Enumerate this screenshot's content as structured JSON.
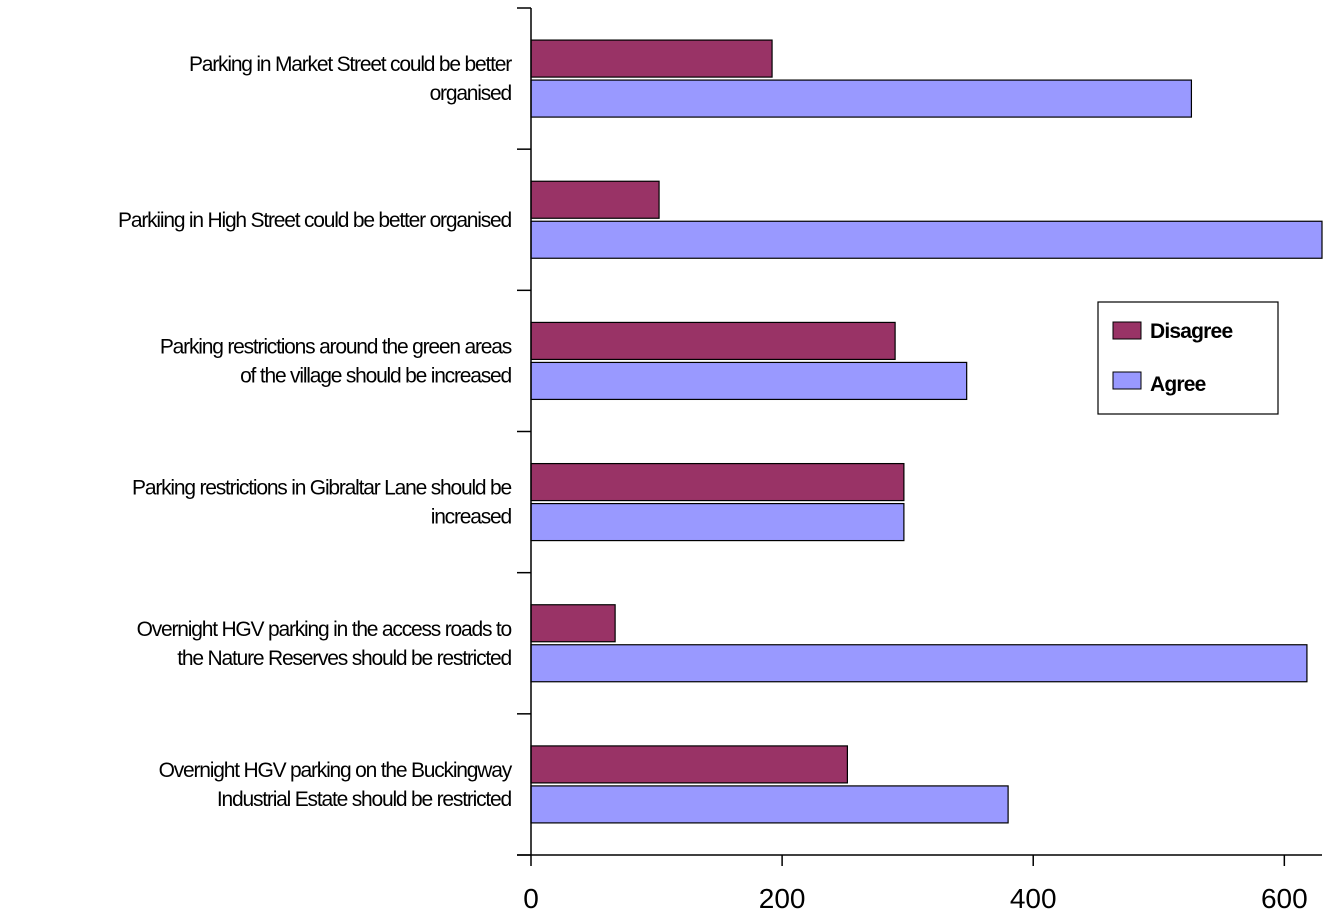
{
  "chart_data": {
    "type": "bar",
    "orientation": "horizontal",
    "categories": [
      [
        "Parking in Market Street could be better",
        "organised"
      ],
      [
        "Parkiing in High Street could be better organised"
      ],
      [
        "Parking restrictions around the green areas",
        "of the village should be increased"
      ],
      [
        "Parking restrictions in Gibraltar Lane should be",
        "increased"
      ],
      [
        "Overnight HGV parking in the access roads to",
        "the Nature Reserves should be restricted"
      ],
      [
        "Overnight HGV parking on the Buckingway",
        "Industrial Estate should be restricted"
      ]
    ],
    "series": [
      {
        "name": "Disagree",
        "color": "#993366",
        "values": [
          192,
          102,
          290,
          297,
          67,
          252
        ]
      },
      {
        "name": "Agree",
        "color": "#9999ff",
        "values": [
          526,
          630,
          347,
          297,
          618,
          380
        ]
      }
    ],
    "xlim": [
      0,
      630
    ],
    "xticks": [
      0,
      200,
      400,
      600
    ],
    "title": "",
    "xlabel": "",
    "ylabel": "",
    "grid": false,
    "legend": "right"
  }
}
